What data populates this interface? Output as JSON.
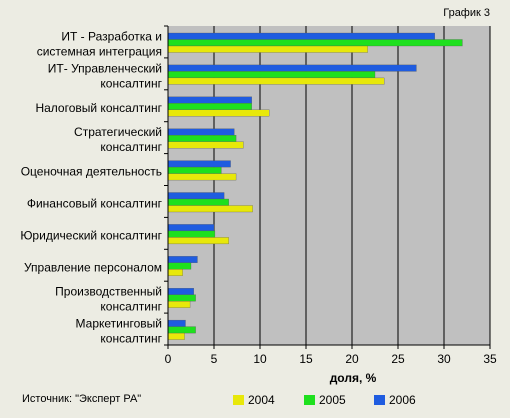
{
  "page": {
    "chart_number": "График 3",
    "source": "Источник: \"Эксперт РА\""
  },
  "chart_data": {
    "type": "bar",
    "orientation": "horizontal",
    "categories": [
      [
        "ИТ - Разработка и",
        "системная интеграция"
      ],
      [
        "ИТ- Управленческий",
        "консалтинг"
      ],
      [
        "Налоговый консалтинг"
      ],
      [
        "Стратегический",
        "консалтинг"
      ],
      [
        "Оценочная деятельность"
      ],
      [
        "Финансовый консалтинг"
      ],
      [
        "Юридический консалтинг"
      ],
      [
        "Управление персоналом"
      ],
      [
        "Производственный",
        "консалтинг"
      ],
      [
        "Маркетинговый",
        "консалтинг"
      ]
    ],
    "series": [
      {
        "name": "2006",
        "color": "#1f5ce0",
        "values": [
          29.0,
          27.0,
          9.1,
          7.2,
          6.8,
          6.1,
          5.0,
          3.2,
          2.8,
          1.9
        ]
      },
      {
        "name": "2005",
        "color": "#1ee01e",
        "values": [
          32.0,
          22.5,
          9.1,
          7.4,
          5.8,
          6.6,
          5.1,
          2.5,
          3.0,
          3.0
        ]
      },
      {
        "name": "2004",
        "color": "#e8e80a",
        "values": [
          21.7,
          23.5,
          11.0,
          8.2,
          7.4,
          9.2,
          6.6,
          1.6,
          2.4,
          1.8
        ]
      }
    ],
    "legend_order": [
      "2004",
      "2005",
      "2006"
    ],
    "xlabel": "доля, %",
    "xlim": [
      0,
      35
    ],
    "xticks": [
      0,
      5,
      10,
      15,
      20,
      25,
      30,
      35
    ],
    "grid": true,
    "legend": "bottom-right",
    "plot_background": "#c0c0c0"
  }
}
